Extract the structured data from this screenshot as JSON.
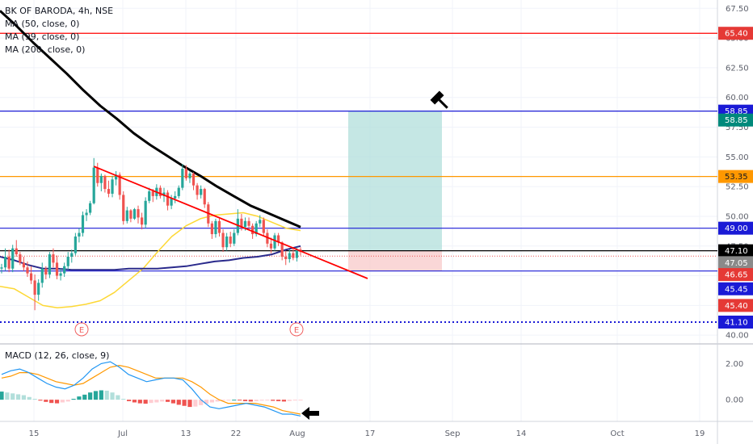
{
  "legend": {
    "symbol": "BK OF BARODA, 4h, NSE",
    "ma50": "MA (50, close, 0)",
    "ma99": "MA (99, close, 0)",
    "ma200": "MA (200, close, 0)"
  },
  "macd_legend": "MACD (12, 26, close, 9)",
  "colors": {
    "up": "#26a69a",
    "down": "#ef5350",
    "ma50": "#fdd835",
    "ma99": "#2a2a8c",
    "ma200": "#000000",
    "macd": "#2196f3",
    "signal": "#ff9800",
    "red_line": "#ff0000",
    "blue_line": "#1a1ad6",
    "orange_line": "#ff9800",
    "profit_zone": "#b2dfdb",
    "loss_zone": "#f8c9c9"
  },
  "chart_data": [
    {
      "type": "candlestick",
      "title": "BK OF BARODA, 4h, NSE",
      "x_ticks": [
        "15",
        "Jul",
        "13",
        "22",
        "Aug",
        "17",
        "Sep",
        "14",
        "Oct",
        "19"
      ],
      "y_ticks": [
        "40.00",
        "42.50",
        "45.00",
        "47.50",
        "50.00",
        "52.50",
        "55.00",
        "57.50",
        "60.00",
        "62.50",
        "65.00",
        "67.50"
      ],
      "ylim": [
        39.4,
        68.2
      ],
      "candles_ohlc": [
        [
          45.6,
          46.0,
          45.2,
          45.7
        ],
        [
          45.7,
          47.3,
          45.4,
          46.6
        ],
        [
          46.6,
          47.2,
          45.3,
          45.6
        ],
        [
          45.6,
          47.6,
          45.3,
          47.3
        ],
        [
          47.3,
          48.0,
          46.6,
          46.8
        ],
        [
          46.8,
          47.0,
          45.9,
          46.1
        ],
        [
          46.1,
          46.6,
          45.4,
          45.7
        ],
        [
          45.7,
          46.2,
          44.9,
          45.2
        ],
        [
          45.2,
          45.8,
          44.3,
          44.6
        ],
        [
          44.6,
          45.1,
          42.1,
          43.4
        ],
        [
          43.4,
          44.7,
          42.9,
          44.4
        ],
        [
          44.4,
          46.1,
          44.0,
          45.6
        ],
        [
          45.6,
          45.8,
          44.7,
          45.1
        ],
        [
          45.1,
          47.0,
          44.8,
          46.8
        ],
        [
          46.8,
          47.3,
          45.7,
          46.1
        ],
        [
          46.1,
          46.7,
          44.7,
          45.0
        ],
        [
          45.0,
          45.6,
          44.6,
          45.2
        ],
        [
          45.2,
          46.1,
          44.9,
          45.8
        ],
        [
          45.8,
          47.0,
          45.5,
          46.6
        ],
        [
          46.6,
          47.2,
          46.1,
          46.9
        ],
        [
          46.9,
          48.6,
          46.7,
          48.3
        ],
        [
          48.3,
          49.0,
          47.8,
          48.6
        ],
        [
          48.6,
          50.4,
          48.3,
          50.1
        ],
        [
          50.1,
          50.6,
          49.6,
          50.3
        ],
        [
          50.3,
          51.3,
          50.1,
          51.1
        ],
        [
          51.1,
          54.9,
          51.0,
          54.1
        ],
        [
          54.1,
          54.5,
          52.5,
          52.8
        ],
        [
          52.8,
          53.6,
          52.1,
          53.4
        ],
        [
          53.4,
          53.5,
          52.0,
          52.3
        ],
        [
          52.3,
          53.0,
          51.6,
          51.9
        ],
        [
          51.9,
          53.4,
          51.6,
          53.1
        ],
        [
          53.1,
          53.8,
          52.6,
          53.5
        ],
        [
          53.5,
          53.7,
          51.4,
          51.8
        ],
        [
          51.8,
          52.1,
          49.3,
          49.6
        ],
        [
          49.6,
          50.8,
          49.4,
          50.5
        ],
        [
          50.5,
          50.6,
          49.5,
          49.8
        ],
        [
          49.8,
          50.7,
          49.7,
          50.6
        ],
        [
          50.6,
          50.9,
          49.4,
          49.9
        ],
        [
          49.9,
          50.3,
          48.9,
          49.3
        ],
        [
          49.3,
          51.6,
          49.0,
          51.3
        ],
        [
          51.3,
          52.4,
          51.1,
          52.1
        ],
        [
          52.1,
          52.3,
          51.2,
          51.7
        ],
        [
          51.7,
          52.7,
          51.4,
          52.4
        ],
        [
          52.4,
          52.6,
          51.5,
          51.7
        ],
        [
          51.7,
          52.4,
          51.2,
          52.0
        ],
        [
          52.0,
          52.2,
          50.5,
          50.9
        ],
        [
          50.9,
          51.8,
          50.6,
          51.5
        ],
        [
          51.5,
          52.1,
          51.1,
          51.7
        ],
        [
          51.7,
          52.6,
          51.5,
          52.4
        ],
        [
          52.4,
          54.4,
          52.2,
          54.0
        ],
        [
          54.0,
          54.3,
          53.0,
          53.2
        ],
        [
          53.2,
          53.8,
          52.8,
          53.6
        ],
        [
          53.6,
          53.7,
          52.2,
          52.6
        ],
        [
          52.6,
          52.8,
          51.4,
          51.8
        ],
        [
          51.8,
          52.6,
          51.5,
          52.3
        ],
        [
          52.3,
          52.4,
          50.7,
          51.0
        ],
        [
          51.0,
          51.2,
          49.1,
          49.4
        ],
        [
          49.4,
          49.6,
          48.1,
          48.5
        ],
        [
          48.5,
          49.8,
          48.2,
          49.6
        ],
        [
          49.6,
          49.8,
          48.3,
          48.6
        ],
        [
          48.6,
          48.9,
          47.0,
          47.4
        ],
        [
          47.4,
          48.6,
          47.1,
          48.3
        ],
        [
          48.3,
          48.7,
          47.4,
          47.7
        ],
        [
          47.7,
          48.9,
          47.5,
          48.6
        ],
        [
          48.6,
          50.6,
          48.4,
          49.8
        ],
        [
          49.8,
          50.2,
          48.8,
          49.1
        ],
        [
          49.1,
          49.9,
          48.8,
          49.6
        ],
        [
          49.6,
          49.9,
          48.9,
          49.2
        ],
        [
          49.2,
          49.4,
          48.1,
          48.5
        ],
        [
          48.5,
          49.6,
          48.3,
          49.4
        ],
        [
          49.4,
          50.1,
          49.1,
          49.7
        ],
        [
          49.7,
          49.9,
          48.3,
          48.6
        ],
        [
          48.6,
          48.9,
          47.4,
          47.7
        ],
        [
          47.7,
          48.2,
          46.9,
          47.3
        ],
        [
          47.3,
          48.6,
          47.1,
          48.4
        ],
        [
          48.4,
          48.6,
          47.5,
          47.8
        ],
        [
          47.8,
          47.9,
          46.3,
          46.6
        ],
        [
          46.6,
          47.1,
          45.9,
          46.4
        ],
        [
          46.4,
          47.2,
          46.1,
          46.9
        ],
        [
          46.9,
          47.3,
          46.3,
          46.5
        ],
        [
          46.5,
          47.4,
          46.2,
          47.2
        ],
        [
          47.2,
          47.4,
          46.7,
          47.0
        ]
      ],
      "moving_averages": [
        {
          "name": "MA (50, close, 0)",
          "values": [
            44.1,
            43.9,
            43.2,
            42.5,
            42.3,
            42.4,
            42.6,
            42.9,
            43.6,
            44.6,
            45.6,
            47.0,
            48.3,
            49.2,
            49.8,
            50.1,
            50.2,
            50.3,
            50.0,
            49.5,
            49.0,
            48.8
          ]
        },
        {
          "name": "MA (99, close, 0)",
          "values": [
            46.6,
            46.3,
            45.9,
            45.6,
            45.6,
            45.5,
            45.5,
            45.5,
            45.5,
            45.6,
            45.6,
            45.6,
            45.7,
            45.8,
            46.0,
            46.2,
            46.3,
            46.5,
            46.6,
            46.8,
            47.2,
            47.5
          ]
        },
        {
          "name": "MA (200, close, 0)",
          "values": [
            67.3,
            66.0,
            64.6,
            63.3,
            62.0,
            60.6,
            59.3,
            58.2,
            57.0,
            56.0,
            55.1,
            54.2,
            53.4,
            52.5,
            51.7,
            50.9,
            50.3,
            49.7,
            49.1
          ]
        }
      ],
      "horizontal_levels": [
        {
          "label": "65.40",
          "value": 65.4,
          "color": "#ff0000"
        },
        {
          "label": "58.85",
          "value": 58.85,
          "color": "#1a1ad6"
        },
        {
          "label": "53.35",
          "value": 53.35,
          "color": "#ff9800"
        },
        {
          "label": "49.00",
          "value": 49.0,
          "color": "#1a1ad6"
        },
        {
          "label": "47.10",
          "value": 47.1,
          "color": "#000000"
        },
        {
          "label": "45.40",
          "value": 45.4,
          "color": "#1a1ad6"
        },
        {
          "label": "41.10",
          "value": 41.1,
          "color": "#1a1ad6",
          "style": "dotted"
        }
      ],
      "price_tags": [
        {
          "label": "65.40",
          "value": 65.4,
          "bg": "#e53935",
          "fg": "#ffffff"
        },
        {
          "label": "58.85",
          "value": 58.85,
          "bg": "#1a1ad6",
          "fg": "#ffffff"
        },
        {
          "label": "58.85",
          "value": 58.1,
          "bg": "#00897b",
          "fg": "#ffffff"
        },
        {
          "label": "53.35",
          "value": 53.35,
          "bg": "#ff9800",
          "fg": "#131722"
        },
        {
          "label": "49.00",
          "value": 49.0,
          "bg": "#1a1ad6",
          "fg": "#ffffff"
        },
        {
          "label": "47.10",
          "value": 47.1,
          "bg": "#000000",
          "fg": "#ffffff"
        },
        {
          "label": "47.05",
          "value": 46.1,
          "bg": "#8a8a8a",
          "fg": "#ffffff"
        },
        {
          "label": "46.65",
          "value": 45.1,
          "bg": "#e53935",
          "fg": "#ffffff"
        },
        {
          "label": "45.45",
          "value": 43.9,
          "bg": "#1a1ad6",
          "fg": "#ffffff"
        },
        {
          "label": "45.40",
          "value": 42.5,
          "bg": "#e53935",
          "fg": "#ffffff"
        },
        {
          "label": "41.10",
          "value": 41.1,
          "bg": "#1a1ad6",
          "fg": "#ffffff"
        }
      ],
      "position": {
        "entry": 47.1,
        "target": 58.85,
        "stop": 45.4
      },
      "trendline": {
        "from": [
          25,
          54.2
        ],
        "to": [
          70,
          45.0
        ],
        "color": "#ff0000"
      },
      "earnings_markers": [
        "E",
        "E"
      ]
    },
    {
      "type": "macd",
      "title": "MACD (12, 26, close, 9)",
      "y_ticks": [
        "2.00",
        "0.00"
      ],
      "ylim": [
        -1.2,
        3.0
      ],
      "macd": [
        1.4,
        1.6,
        1.7,
        1.5,
        1.2,
        0.9,
        0.7,
        0.6,
        0.8,
        1.2,
        1.7,
        2.0,
        2.1,
        1.8,
        1.4,
        1.2,
        1.0,
        1.1,
        1.2,
        1.2,
        1.1,
        0.6,
        0.0,
        -0.4,
        -0.5,
        -0.4,
        -0.3,
        -0.2,
        -0.3,
        -0.4,
        -0.6,
        -0.8,
        -0.8,
        -0.9
      ],
      "signal": [
        1.2,
        1.3,
        1.5,
        1.5,
        1.4,
        1.2,
        1.0,
        0.9,
        0.8,
        0.9,
        1.2,
        1.5,
        1.8,
        1.9,
        1.8,
        1.6,
        1.4,
        1.2,
        1.2,
        1.2,
        1.2,
        1.0,
        0.7,
        0.3,
        0.0,
        -0.2,
        -0.2,
        -0.2,
        -0.2,
        -0.3,
        -0.4,
        -0.6,
        -0.7,
        -0.8
      ],
      "histogram": [
        0.45,
        0.4,
        0.35,
        0.3,
        0.25,
        0.15,
        0.05,
        -0.05,
        -0.12,
        -0.18,
        -0.2,
        -0.15,
        -0.1,
        0.05,
        0.18,
        0.28,
        0.4,
        0.48,
        0.52,
        0.5,
        0.4,
        0.25,
        0.05,
        -0.08,
        -0.15,
        -0.2,
        -0.22,
        -0.18,
        -0.15,
        -0.1,
        -0.12,
        -0.2,
        -0.28,
        -0.34,
        -0.4,
        -0.38,
        -0.3,
        -0.22,
        -0.15,
        -0.1,
        -0.05,
        -0.02,
        0.0,
        -0.03,
        -0.08,
        -0.1,
        -0.08,
        -0.05,
        -0.04,
        -0.06,
        -0.08,
        -0.1,
        -0.07,
        -0.04,
        -0.02
      ]
    }
  ]
}
